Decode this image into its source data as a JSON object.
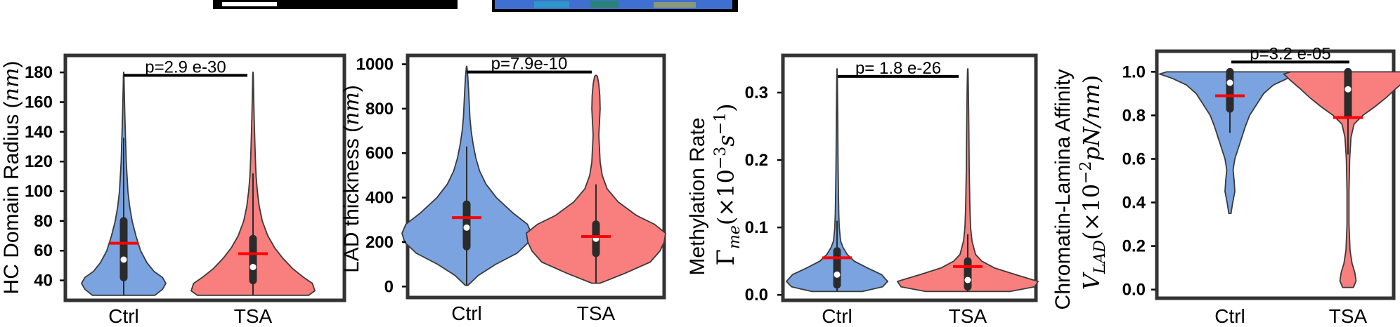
{
  "chart_data": [
    {
      "type": "violin",
      "title": "",
      "xlabel": "",
      "ylabel": "HC Domain Radius (",
      "ylabel_unit": "nm",
      "ylabel_close": ")",
      "categories": [
        "Ctrl",
        "TSA"
      ],
      "ylim": [
        28,
        190
      ],
      "yticks": [
        40,
        60,
        80,
        100,
        120,
        140,
        160,
        180
      ],
      "ytick_labels": [
        "40",
        "60",
        "80",
        "100",
        "120",
        "140",
        "160",
        "180"
      ],
      "pvalue": "p=2.9 e-30",
      "pvalue_y": 178,
      "series": [
        {
          "name": "Ctrl",
          "color": "#7aa3e0",
          "min": 30,
          "max": 180,
          "q1": 42,
          "median": 54,
          "q3": 80,
          "whisker_low": 30,
          "whisker_high": 136,
          "mean": 65,
          "profile": [
            [
              30,
              0.74
            ],
            [
              34,
              0.92
            ],
            [
              38,
              1.0
            ],
            [
              42,
              0.92
            ],
            [
              46,
              0.72
            ],
            [
              52,
              0.55
            ],
            [
              60,
              0.4
            ],
            [
              70,
              0.29
            ],
            [
              80,
              0.2
            ],
            [
              90,
              0.14
            ],
            [
              100,
              0.1
            ],
            [
              110,
              0.08
            ],
            [
              120,
              0.06
            ],
            [
              130,
              0.05
            ],
            [
              140,
              0.038
            ],
            [
              150,
              0.028
            ],
            [
              160,
              0.02
            ],
            [
              170,
              0.012
            ],
            [
              178,
              0.006
            ],
            [
              180,
              0.002
            ]
          ]
        },
        {
          "name": "TSA",
          "color": "#f97f7f",
          "min": 30,
          "max": 180,
          "q1": 40,
          "median": 49,
          "q3": 68,
          "whisker_low": 30,
          "whisker_high": 112,
          "mean": 58,
          "profile": [
            [
              30,
              0.9
            ],
            [
              33,
              1.0
            ],
            [
              38,
              0.96
            ],
            [
              42,
              0.82
            ],
            [
              48,
              0.64
            ],
            [
              55,
              0.48
            ],
            [
              62,
              0.35
            ],
            [
              70,
              0.24
            ],
            [
              80,
              0.15
            ],
            [
              90,
              0.1
            ],
            [
              100,
              0.07
            ],
            [
              110,
              0.05
            ],
            [
              120,
              0.04
            ],
            [
              130,
              0.032
            ],
            [
              140,
              0.025
            ],
            [
              150,
              0.018
            ],
            [
              160,
              0.012
            ],
            [
              170,
              0.008
            ],
            [
              178,
              0.004
            ],
            [
              180,
              0.002
            ]
          ]
        }
      ]
    },
    {
      "type": "violin",
      "title": "",
      "xlabel": "",
      "ylabel": "LAD thickness (",
      "ylabel_unit": "nm",
      "ylabel_close": ")",
      "categories": [
        "Ctrl",
        "TSA"
      ],
      "ylim": [
        -40,
        1030
      ],
      "yticks": [
        0,
        200,
        400,
        600,
        800,
        1000
      ],
      "ytick_labels": [
        "0",
        "200",
        "400",
        "600",
        "800",
        "1000"
      ],
      "pvalue": "p=7.9e-10",
      "pvalue_y": 965,
      "series": [
        {
          "name": "Ctrl",
          "color": "#7aa3e0",
          "min": 5,
          "max": 990,
          "q1": 180,
          "median": 265,
          "q3": 370,
          "whisker_low": 5,
          "whisker_high": 630,
          "mean": 310,
          "profile": [
            [
              5,
              0.02
            ],
            [
              50,
              0.18
            ],
            [
              100,
              0.45
            ],
            [
              150,
              0.78
            ],
            [
              200,
              0.96
            ],
            [
              240,
              1.0
            ],
            [
              280,
              0.94
            ],
            [
              330,
              0.72
            ],
            [
              400,
              0.46
            ],
            [
              460,
              0.3
            ],
            [
              520,
              0.2
            ],
            [
              580,
              0.14
            ],
            [
              640,
              0.1
            ],
            [
              700,
              0.07
            ],
            [
              760,
              0.05
            ],
            [
              820,
              0.04
            ],
            [
              880,
              0.03
            ],
            [
              940,
              0.018
            ],
            [
              980,
              0.008
            ],
            [
              990,
              0.002
            ]
          ]
        },
        {
          "name": "TSA",
          "color": "#f97f7f",
          "min": 15,
          "max": 950,
          "q1": 150,
          "median": 215,
          "q3": 280,
          "whisker_low": 15,
          "whisker_high": 460,
          "mean": 225,
          "profile": [
            [
              15,
              0.06
            ],
            [
              60,
              0.42
            ],
            [
              110,
              0.78
            ],
            [
              160,
              0.92
            ],
            [
              200,
              0.98
            ],
            [
              240,
              1.0
            ],
            [
              280,
              0.84
            ],
            [
              320,
              0.58
            ],
            [
              380,
              0.32
            ],
            [
              440,
              0.16
            ],
            [
              500,
              0.09
            ],
            [
              560,
              0.06
            ],
            [
              620,
              0.05
            ],
            [
              680,
              0.04
            ],
            [
              740,
              0.05
            ],
            [
              800,
              0.06
            ],
            [
              860,
              0.055
            ],
            [
              910,
              0.04
            ],
            [
              945,
              0.02
            ],
            [
              950,
              0.005
            ]
          ]
        }
      ]
    },
    {
      "type": "violin",
      "title": "",
      "xlabel": "",
      "ylabel": "Methylation Rate",
      "ylabel2_gamma": "Γ",
      "ylabel2_sub": "me",
      "ylabel2_open": "(×10",
      "ylabel2_exp": "−3",
      "ylabel2_unit": "s",
      "ylabel2_unitexp": "−1",
      "ylabel2_close": ")",
      "categories": [
        "Ctrl",
        "TSA"
      ],
      "ylim": [
        -0.005,
        0.352
      ],
      "yticks": [
        0.0,
        0.1,
        0.2,
        0.3
      ],
      "ytick_labels": [
        "0.0",
        "0.1",
        "0.2",
        "0.3"
      ],
      "pvalue": "p= 1.8 e-26",
      "pvalue_y": 0.324,
      "series": [
        {
          "name": "Ctrl",
          "color": "#7aa3e0",
          "min": 0.005,
          "max": 0.335,
          "q1": 0.015,
          "median": 0.03,
          "q3": 0.065,
          "whisker_low": 0.005,
          "whisker_high": 0.11,
          "mean": 0.055,
          "profile": [
            [
              0.005,
              0.5
            ],
            [
              0.012,
              0.9
            ],
            [
              0.02,
              1.0
            ],
            [
              0.03,
              0.88
            ],
            [
              0.04,
              0.6
            ],
            [
              0.05,
              0.34
            ],
            [
              0.06,
              0.2
            ],
            [
              0.07,
              0.12
            ],
            [
              0.08,
              0.07
            ],
            [
              0.1,
              0.045
            ],
            [
              0.12,
              0.035
            ],
            [
              0.15,
              0.028
            ],
            [
              0.18,
              0.022
            ],
            [
              0.21,
              0.018
            ],
            [
              0.24,
              0.015
            ],
            [
              0.27,
              0.012
            ],
            [
              0.3,
              0.008
            ],
            [
              0.325,
              0.005
            ],
            [
              0.335,
              0.002
            ]
          ]
        },
        {
          "name": "TSA",
          "color": "#f97f7f",
          "min": 0.005,
          "max": 0.335,
          "q1": 0.012,
          "median": 0.022,
          "q3": 0.05,
          "whisker_low": 0.005,
          "whisker_high": 0.09,
          "mean": 0.042,
          "profile": [
            [
              0.005,
              0.6
            ],
            [
              0.012,
              0.95
            ],
            [
              0.02,
              1.0
            ],
            [
              0.03,
              0.68
            ],
            [
              0.04,
              0.38
            ],
            [
              0.05,
              0.2
            ],
            [
              0.06,
              0.11
            ],
            [
              0.08,
              0.06
            ],
            [
              0.1,
              0.04
            ],
            [
              0.13,
              0.03
            ],
            [
              0.16,
              0.025
            ],
            [
              0.19,
              0.02
            ],
            [
              0.22,
              0.018
            ],
            [
              0.25,
              0.015
            ],
            [
              0.28,
              0.012
            ],
            [
              0.31,
              0.008
            ],
            [
              0.33,
              0.004
            ],
            [
              0.335,
              0.002
            ]
          ]
        }
      ]
    },
    {
      "type": "violin",
      "title": "",
      "xlabel": "",
      "ylabel": "Chromatin-Lamina Affinity",
      "ylabel2_var": "V",
      "ylabel2_sub": "LAD",
      "ylabel2_open": "(×10",
      "ylabel2_exp": "−2",
      "ylabel2_unit": "pN/nm",
      "ylabel2_close": ")",
      "categories": [
        "Ctrl",
        "TSA"
      ],
      "ylim": [
        -0.03,
        1.085
      ],
      "yticks": [
        0.0,
        0.2,
        0.4,
        0.6,
        0.8,
        1.0
      ],
      "ytick_labels": [
        "0.0",
        "0.2",
        "0.4",
        "0.6",
        "0.8",
        "1.0"
      ],
      "pvalue": "p=3.2 e-05",
      "pvalue_y": 1.045,
      "series": [
        {
          "name": "Ctrl",
          "color": "#7aa3e0",
          "min": 0.35,
          "max": 1.0,
          "q1": 0.83,
          "median": 0.95,
          "q3": 1.0,
          "whisker_low": 0.72,
          "whisker_high": 1.0,
          "mean": 0.89,
          "profile": [
            [
              0.35,
              0.015
            ],
            [
              0.4,
              0.04
            ],
            [
              0.45,
              0.07
            ],
            [
              0.5,
              0.06
            ],
            [
              0.55,
              0.045
            ],
            [
              0.6,
              0.07
            ],
            [
              0.65,
              0.12
            ],
            [
              0.7,
              0.17
            ],
            [
              0.75,
              0.22
            ],
            [
              0.8,
              0.28
            ],
            [
              0.85,
              0.38
            ],
            [
              0.9,
              0.48
            ],
            [
              0.94,
              0.62
            ],
            [
              0.97,
              0.82
            ],
            [
              0.99,
              1.0
            ],
            [
              1.0,
              0.9
            ]
          ]
        },
        {
          "name": "TSA",
          "color": "#f97f7f",
          "min": 0.01,
          "max": 1.0,
          "q1": 0.8,
          "median": 0.92,
          "q3": 1.0,
          "whisker_low": 0.62,
          "whisker_high": 1.0,
          "mean": 0.79,
          "profile": [
            [
              0.01,
              0.08
            ],
            [
              0.04,
              0.12
            ],
            [
              0.08,
              0.1
            ],
            [
              0.12,
              0.06
            ],
            [
              0.18,
              0.03
            ],
            [
              0.3,
              0.015
            ],
            [
              0.45,
              0.015
            ],
            [
              0.6,
              0.025
            ],
            [
              0.7,
              0.045
            ],
            [
              0.76,
              0.09
            ],
            [
              0.8,
              0.22
            ],
            [
              0.84,
              0.4
            ],
            [
              0.88,
              0.56
            ],
            [
              0.92,
              0.7
            ],
            [
              0.96,
              0.85
            ],
            [
              0.99,
              0.95
            ],
            [
              1.0,
              0.85
            ]
          ]
        }
      ]
    }
  ]
}
